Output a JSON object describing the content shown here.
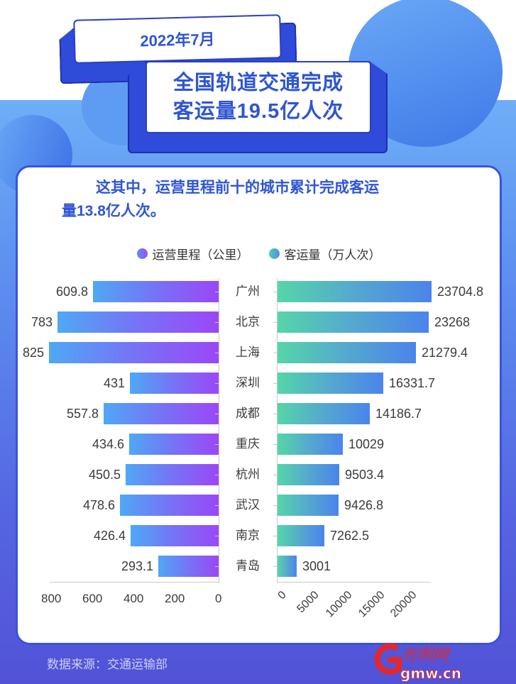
{
  "header": {
    "date": "2022年7月",
    "title_line1": "全国轨道交通完成",
    "title_line2": "客运量19.5亿人次"
  },
  "intro": {
    "line1": "这其中，运营里程前十的城市累计完成客运",
    "line2": "量13.8亿人次。"
  },
  "legend": {
    "mileage": "运营里程（公里）",
    "traffic": "客运量（万人次）"
  },
  "footer": {
    "source": "数据来源：交通运输部",
    "logo_text": "光明网",
    "logo_domain": "gmw.cn"
  },
  "colors": {
    "brand_blue": "#2f55d4",
    "mileage_bar_start": "#4fa8f5",
    "mileage_bar_end": "#9b47f7",
    "traffic_bar_start": "#55d6a8",
    "traffic_bar_end": "#4a84ec",
    "logo_red": "#e8262a"
  },
  "chart_data": [
    {
      "type": "bar",
      "orientation": "horizontal",
      "title": "运营里程（公里）",
      "categories": [
        "广州",
        "北京",
        "上海",
        "深圳",
        "成都",
        "重庆",
        "杭州",
        "武汉",
        "南京",
        "青岛"
      ],
      "values": [
        609.8,
        783,
        825,
        431,
        557.8,
        434.6,
        450.5,
        478.6,
        426.4,
        293.1
      ],
      "value_labels": [
        "609.8",
        "783",
        "825",
        "431",
        "557.8",
        "434.6",
        "450.5",
        "478.6",
        "426.4",
        "293.1"
      ],
      "xlabel": "",
      "ylabel": "",
      "xlim": [
        0,
        800
      ],
      "xticks": [
        "800",
        "600",
        "400",
        "200",
        "0"
      ],
      "x_reversed": true,
      "grid": false
    },
    {
      "type": "bar",
      "orientation": "horizontal",
      "title": "客运量（万人次）",
      "categories": [
        "广州",
        "北京",
        "上海",
        "深圳",
        "成都",
        "重庆",
        "杭州",
        "武汉",
        "南京",
        "青岛"
      ],
      "values": [
        23704.8,
        23268,
        21279.4,
        16331.7,
        14186.7,
        10029,
        9503.4,
        9426.8,
        7262.5,
        3001
      ],
      "value_labels": [
        "23704.8",
        "23268",
        "21279.4",
        "16331.7",
        "14186.7",
        "10029",
        "9503.4",
        "9426.8",
        "7262.5",
        "3001"
      ],
      "xlabel": "",
      "ylabel": "",
      "xlim": [
        0,
        24000
      ],
      "xticks": [
        "0",
        "5000",
        "10000",
        "15000",
        "20000"
      ],
      "grid": false
    }
  ]
}
